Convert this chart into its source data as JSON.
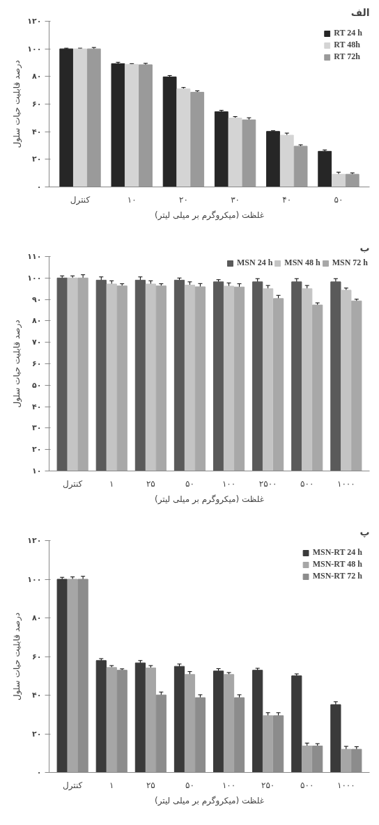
{
  "chart_data": [
    {
      "type": "bar",
      "title": "الف",
      "xlabel": "غلظت (میکروگرم بر میلی لیتر)",
      "ylabel": "درصد قابلیت حیات سلول",
      "categories": [
        "کنترل",
        "۱۰",
        "۲۰",
        "۳۰",
        "۴۰",
        "۵۰"
      ],
      "series": [
        {
          "name": "RT 24 h",
          "color": "#262626",
          "values": [
            100,
            89.3,
            79.7,
            54.5,
            40.2,
            25.8
          ],
          "errors": [
            0.5,
            1,
            1,
            1,
            0.5,
            1
          ]
        },
        {
          "name": "RT 48h",
          "color": "#d4d4d4",
          "values": [
            100,
            88.8,
            71,
            49.9,
            37.5,
            9.2
          ],
          "errors": [
            0.5,
            0.5,
            1,
            1,
            1.5,
            1.5
          ]
        },
        {
          "name": "RT 72h",
          "color": "#9a9a9a",
          "values": [
            100,
            88.5,
            68.6,
            48.6,
            29.5,
            9.2
          ],
          "errors": [
            1,
            1,
            1,
            1.5,
            1,
            1
          ]
        }
      ],
      "ylim": [
        0,
        120
      ],
      "yticks": [
        {
          "value": 0,
          "label": "۰"
        },
        {
          "value": 20,
          "label": "۲۰"
        },
        {
          "value": 40,
          "label": "۴۰"
        },
        {
          "value": 60,
          "label": "۶۰"
        },
        {
          "value": 80,
          "label": "۸۰"
        },
        {
          "value": 100,
          "label": "۱۰۰"
        },
        {
          "value": 120,
          "label": "۱۲۰"
        }
      ],
      "legend": "top right",
      "grid": false
    },
    {
      "type": "bar",
      "title": "ب",
      "xlabel": "غلظت (میکروگرم بر میلی لیتر)",
      "ylabel": "درصد قابلیت حیات سلول",
      "categories": [
        "کنترل",
        "۱",
        "۲۵",
        "۵۰",
        "۱۰۰",
        "۲۵۰۰",
        "۵۰۰",
        "۱۰۰۰"
      ],
      "series": [
        {
          "name": "MSN 24 h",
          "color": "#5a5a5a",
          "values": [
            100,
            99,
            99,
            99,
            98.2,
            98.2,
            98.2,
            98.2
          ],
          "errors": [
            1,
            1.5,
            1.5,
            1,
            1,
            1.5,
            1.5,
            1.5
          ]
        },
        {
          "name": "MSN 48 h",
          "color": "#c4c4c4",
          "values": [
            100,
            97.2,
            97.2,
            96.7,
            96.2,
            95,
            95,
            94.3
          ],
          "errors": [
            1,
            1.5,
            1.5,
            1.5,
            1.5,
            1.5,
            1.5,
            1
          ]
        },
        {
          "name": "MSN 72 h",
          "color": "#a8a8a8",
          "values": [
            100,
            96.3,
            96.3,
            95.9,
            95.8,
            90.4,
            87.4,
            89.3
          ],
          "errors": [
            1.5,
            1,
            1,
            1.5,
            1.5,
            1.5,
            1,
            0.8
          ]
        }
      ],
      "ylim": [
        10,
        110
      ],
      "yticks": [
        {
          "value": 10,
          "label": "۱۰"
        },
        {
          "value": 20,
          "label": "۲۰"
        },
        {
          "value": 30,
          "label": "۳۰"
        },
        {
          "value": 40,
          "label": "۴۰"
        },
        {
          "value": 50,
          "label": "۵۰"
        },
        {
          "value": 60,
          "label": "۶۰"
        },
        {
          "value": 70,
          "label": "۷۰"
        },
        {
          "value": 80,
          "label": "۸۰"
        },
        {
          "value": 90,
          "label": "۹۰"
        },
        {
          "value": 100,
          "label": "۱۰۰"
        },
        {
          "value": 110,
          "label": "۱۱۰"
        }
      ],
      "legend": "top",
      "grid": false
    },
    {
      "type": "bar",
      "title": "پ",
      "xlabel": "غلظت (میکروگرم بر میلی لیتر)",
      "ylabel": "درصد قابلیت حیات سلول",
      "categories": [
        "کنترل",
        "۱",
        "۲۵",
        "۵۰",
        "۱۰۰",
        "۲۵۰",
        "۵۰۰",
        "۱۰۰۰"
      ],
      "series": [
        {
          "name": "MSN-RT 24 h",
          "color": "#3a3a3a",
          "values": [
            100,
            57.9,
            56.7,
            54.9,
            52.5,
            52.9,
            50,
            35.1
          ],
          "errors": [
            1,
            1,
            1.2,
            1.2,
            1.2,
            1,
            1,
            1.5
          ]
        },
        {
          "name": "MSN-RT 48 h",
          "color": "#a6a6a6",
          "values": [
            100,
            54.3,
            54.1,
            50.7,
            50.7,
            29.4,
            13.7,
            12
          ],
          "errors": [
            1.2,
            1,
            1.2,
            1.5,
            1,
            1.5,
            1.5,
            1.5
          ]
        },
        {
          "name": "MSN-RT 72 h",
          "color": "#8c8c8c",
          "values": [
            100,
            52.9,
            40.1,
            38.7,
            38.7,
            29.4,
            13.7,
            12
          ],
          "errors": [
            1.5,
            0.7,
            1.5,
            1.5,
            1.5,
            1.5,
            1.2,
            1.3
          ]
        }
      ],
      "ylim": [
        0,
        120
      ],
      "yticks": [
        {
          "value": 0,
          "label": "۰"
        },
        {
          "value": 20,
          "label": "۲۰"
        },
        {
          "value": 40,
          "label": "۴۰"
        },
        {
          "value": 60,
          "label": "۶۰"
        },
        {
          "value": 80,
          "label": "۸۰"
        },
        {
          "value": 100,
          "label": "۱۰۰"
        },
        {
          "value": 120,
          "label": "۱۲۰"
        }
      ],
      "legend": "top right",
      "grid": false
    }
  ]
}
